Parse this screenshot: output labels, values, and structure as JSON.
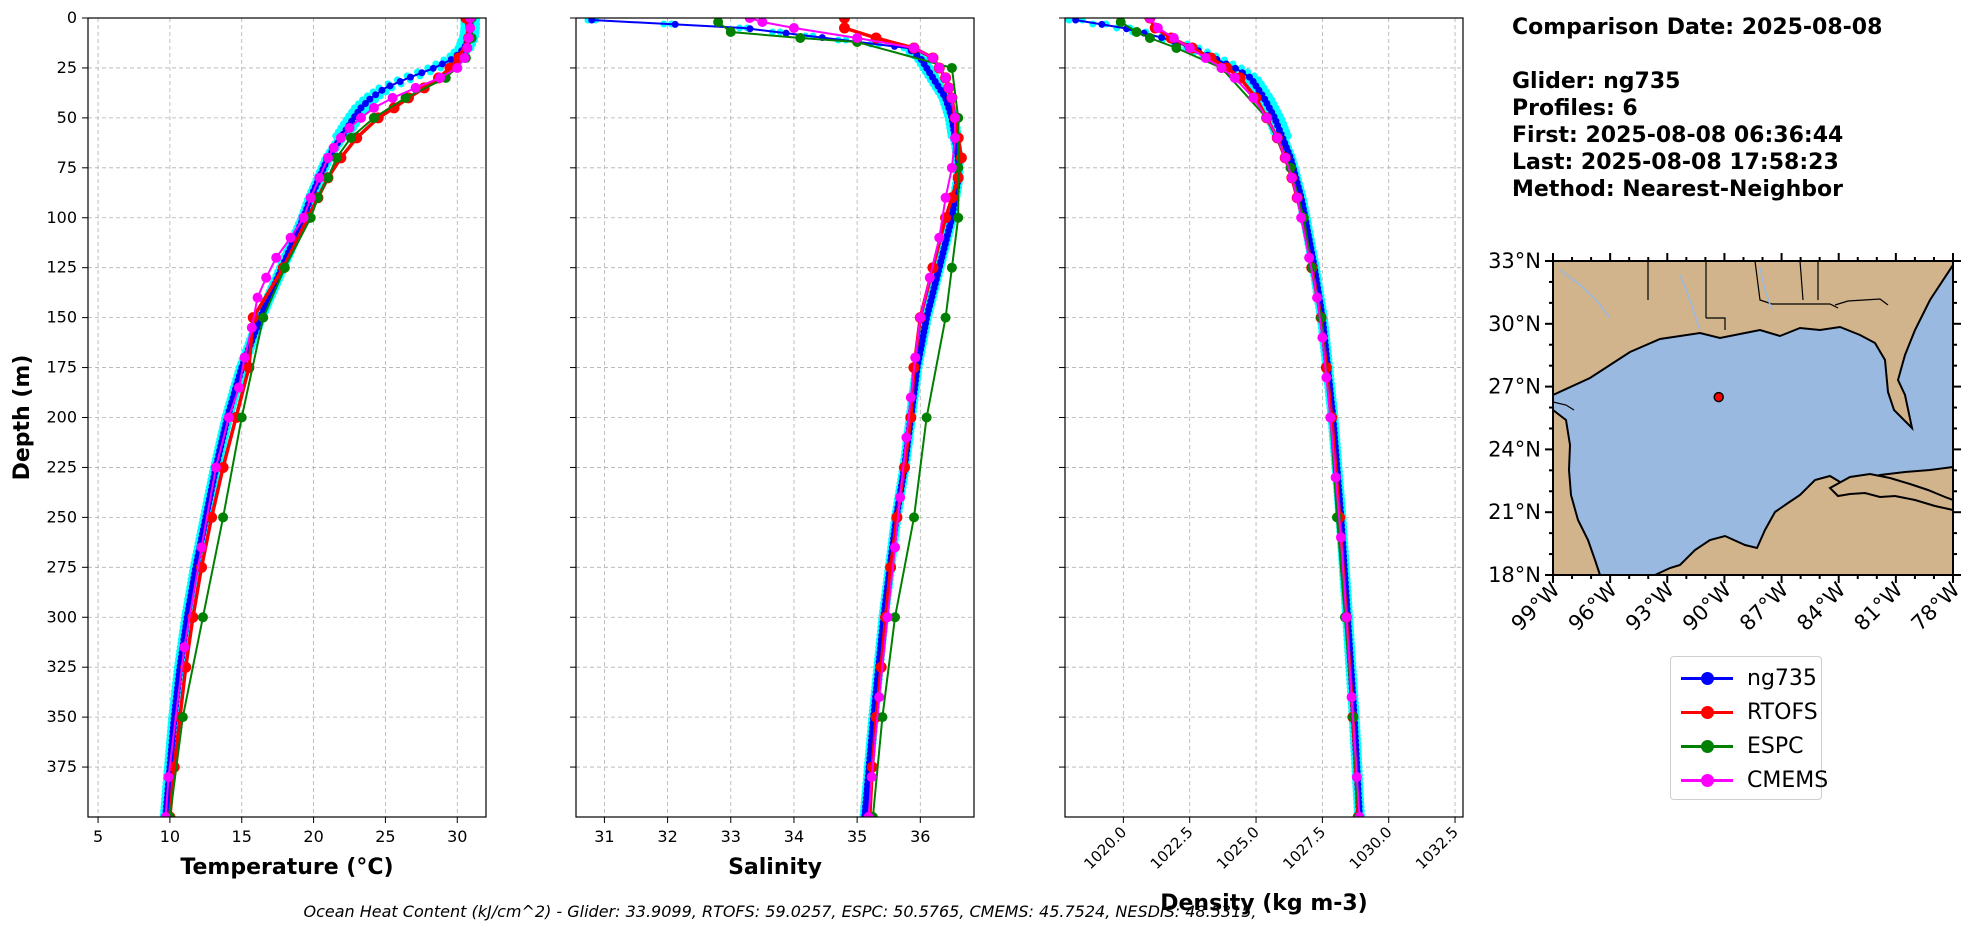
{
  "info": {
    "comparison_date": "Comparison Date: 2025-08-08",
    "glider": "Glider: ng735",
    "profiles": "Profiles: 6",
    "first": "First: 2025-08-08 06:36:44",
    "last": "Last: 2025-08-08 17:58:23",
    "method": "Method: Nearest-Neighbor"
  },
  "footer": "Ocean Heat Content (kJ/cm^2) - Glider: 33.9099,  RTOFS: 59.0257,  ESPC: 50.5765,  CMEMS: 45.7524,  NESDIS: 48.5315,",
  "legend": [
    {
      "label": "ng735",
      "color": "#0000ff"
    },
    {
      "label": "RTOFS",
      "color": "#ff0000"
    },
    {
      "label": "ESPC",
      "color": "#008000"
    },
    {
      "label": "CMEMS",
      "color": "#ff00ff"
    }
  ],
  "colors": {
    "glider_profiles": "#00ffff",
    "land": "#d2b48c",
    "ocean": "#99b9e1",
    "marker": "#ff0000"
  },
  "chart_data": [
    {
      "type": "line",
      "title": "",
      "xlabel": "Temperature (°C)",
      "ylabel": "Depth (m)",
      "xlim": [
        4.3,
        32
      ],
      "ylim": [
        400,
        0
      ],
      "xticks": [
        5,
        10,
        15,
        20,
        25,
        30
      ],
      "yticks": [
        0,
        25,
        50,
        75,
        100,
        125,
        150,
        175,
        200,
        225,
        250,
        275,
        300,
        325,
        350,
        375
      ],
      "grid": true,
      "series": [
        {
          "name": "ng735",
          "color": "#0000ff",
          "depth": [
            0,
            5,
            10,
            15,
            20,
            25,
            30,
            35,
            40,
            45,
            50,
            60,
            70,
            80,
            90,
            100,
            125,
            150,
            175,
            200,
            225,
            250,
            275,
            300,
            325,
            350,
            375,
            400
          ],
          "values": [
            30.9,
            30.9,
            30.8,
            30.5,
            29.8,
            28.4,
            26.6,
            25.0,
            24.0,
            23.3,
            22.8,
            21.9,
            21.0,
            20.4,
            19.8,
            19.3,
            17.8,
            16.3,
            15.0,
            14.0,
            13.2,
            12.5,
            11.8,
            11.2,
            10.7,
            10.3,
            10.0,
            9.7
          ]
        },
        {
          "name": "RTOFS",
          "color": "#ff0000",
          "depth": [
            0,
            10,
            20,
            25,
            30,
            35,
            40,
            45,
            50,
            60,
            70,
            80,
            90,
            100,
            125,
            150,
            175,
            200,
            225,
            250,
            275,
            300,
            325,
            350,
            375,
            400
          ],
          "values": [
            30.6,
            30.8,
            30.1,
            29.5,
            28.7,
            27.7,
            26.6,
            25.6,
            24.5,
            23.0,
            21.9,
            21.0,
            20.3,
            19.6,
            17.9,
            15.8,
            15.5,
            14.6,
            13.7,
            12.9,
            12.2,
            11.6,
            11.1,
            10.7,
            10.3,
            10.0
          ]
        },
        {
          "name": "ESPC",
          "color": "#008000",
          "depth": [
            0,
            10,
            20,
            30,
            40,
            50,
            60,
            70,
            80,
            90,
            100,
            125,
            150,
            200,
            250,
            300,
            350,
            400
          ],
          "values": [
            31.0,
            31.0,
            30.6,
            29.2,
            26.4,
            24.2,
            22.6,
            21.6,
            21.0,
            20.3,
            19.8,
            18.0,
            16.5,
            15.0,
            13.7,
            12.3,
            10.9,
            10.0
          ]
        },
        {
          "name": "CMEMS",
          "color": "#ff00ff",
          "depth": [
            0,
            5,
            10,
            15,
            20,
            25,
            30,
            35,
            40,
            45,
            50,
            55,
            60,
            65,
            70,
            80,
            90,
            100,
            110,
            120,
            130,
            140,
            155,
            170,
            185,
            200,
            225,
            265,
            315,
            380,
            400
          ],
          "values": [
            30.9,
            30.9,
            30.8,
            30.7,
            30.5,
            30.0,
            28.8,
            27.1,
            25.5,
            24.2,
            23.3,
            22.5,
            21.9,
            21.4,
            21.0,
            20.4,
            19.8,
            19.3,
            18.4,
            17.4,
            16.7,
            16.1,
            15.7,
            15.2,
            14.8,
            14.1,
            13.2,
            12.2,
            11.0,
            9.9,
            9.7
          ]
        }
      ]
    },
    {
      "type": "line",
      "title": "",
      "xlabel": "Salinity",
      "ylabel": "",
      "xlim": [
        30.55,
        36.85
      ],
      "ylim": [
        400,
        0
      ],
      "xticks": [
        31,
        32,
        33,
        34,
        35,
        36
      ],
      "grid": true,
      "series": [
        {
          "name": "ng735",
          "color": "#0000ff",
          "depth": [
            1,
            5,
            10,
            15,
            20,
            25,
            30,
            35,
            40,
            50,
            60,
            70,
            80,
            90,
            100,
            125,
            150,
            175,
            200,
            225,
            250,
            275,
            300,
            325,
            350,
            375,
            400
          ],
          "values": [
            30.8,
            33.2,
            34.5,
            35.8,
            36.0,
            36.1,
            36.2,
            36.3,
            36.4,
            36.5,
            36.55,
            36.6,
            36.6,
            36.55,
            36.5,
            36.3,
            36.1,
            35.95,
            35.85,
            35.75,
            35.62,
            35.52,
            35.42,
            35.34,
            35.26,
            35.19,
            35.12
          ]
        },
        {
          "name": "RTOFS",
          "color": "#ff0000",
          "depth": [
            0,
            5,
            10,
            15,
            20,
            25,
            30,
            35,
            40,
            50,
            60,
            70,
            80,
            90,
            100,
            125,
            150,
            175,
            200,
            225,
            250,
            275,
            300,
            325,
            350,
            375,
            400
          ],
          "values": [
            34.8,
            34.8,
            35.3,
            35.9,
            36.2,
            36.3,
            36.4,
            36.45,
            36.5,
            36.55,
            36.6,
            36.65,
            36.6,
            36.5,
            36.4,
            36.2,
            36.0,
            35.9,
            35.85,
            35.75,
            35.63,
            35.53,
            35.45,
            35.38,
            35.3,
            35.24,
            35.2
          ]
        },
        {
          "name": "ESPC",
          "color": "#008000",
          "depth": [
            2,
            7,
            10,
            12,
            25,
            50,
            75,
            100,
            125,
            150,
            200,
            250,
            300,
            350,
            400
          ],
          "values": [
            32.8,
            33.0,
            34.1,
            35.0,
            36.5,
            36.6,
            36.6,
            36.6,
            36.5,
            36.4,
            36.1,
            35.9,
            35.6,
            35.4,
            35.25
          ]
        },
        {
          "name": "CMEMS",
          "color": "#ff00ff",
          "depth": [
            0,
            2,
            5,
            10,
            15,
            20,
            25,
            30,
            35,
            40,
            50,
            60,
            75,
            90,
            110,
            130,
            150,
            170,
            190,
            210,
            240,
            265,
            300,
            340,
            380,
            400
          ],
          "values": [
            33.3,
            33.5,
            34.0,
            35.0,
            35.9,
            36.2,
            36.3,
            36.4,
            36.45,
            36.5,
            36.55,
            36.55,
            36.5,
            36.4,
            36.3,
            36.15,
            36.0,
            35.92,
            35.85,
            35.78,
            35.68,
            35.6,
            35.48,
            35.35,
            35.23,
            35.18
          ]
        }
      ]
    },
    {
      "type": "line",
      "title": "",
      "xlabel": "Density (kg m-3)",
      "ylabel": "",
      "xlim": [
        1017.8,
        1032.8
      ],
      "ylim": [
        400,
        0
      ],
      "xticks": [
        1020.0,
        1022.5,
        1025.0,
        1027.5,
        1030.0,
        1032.5
      ],
      "grid": true,
      "series": [
        {
          "name": "ng735",
          "color": "#0000ff",
          "depth": [
            1,
            5,
            10,
            15,
            20,
            25,
            30,
            40,
            50,
            60,
            70,
            80,
            90,
            100,
            125,
            150,
            175,
            200,
            250,
            300,
            350,
            400
          ],
          "values": [
            1018.2,
            1020.0,
            1021.5,
            1022.6,
            1023.4,
            1024.2,
            1024.8,
            1025.3,
            1025.7,
            1026.0,
            1026.3,
            1026.5,
            1026.7,
            1026.85,
            1027.2,
            1027.5,
            1027.7,
            1027.9,
            1028.2,
            1028.45,
            1028.7,
            1028.9
          ]
        },
        {
          "name": "RTOFS",
          "color": "#ff0000",
          "depth": [
            0,
            5,
            10,
            15,
            20,
            25,
            30,
            40,
            50,
            60,
            70,
            80,
            90,
            100,
            125,
            150,
            175,
            200,
            250,
            300,
            350,
            400
          ],
          "values": [
            1021.0,
            1021.2,
            1021.8,
            1022.6,
            1023.3,
            1023.9,
            1024.4,
            1025.0,
            1025.4,
            1025.8,
            1026.1,
            1026.35,
            1026.55,
            1026.75,
            1027.1,
            1027.45,
            1027.65,
            1027.85,
            1028.15,
            1028.4,
            1028.65,
            1028.85
          ]
        },
        {
          "name": "ESPC",
          "color": "#008000",
          "depth": [
            2,
            7,
            10,
            15,
            25,
            50,
            75,
            100,
            125,
            150,
            200,
            250,
            300,
            350,
            400
          ],
          "values": [
            1019.9,
            1020.5,
            1021.0,
            1022.0,
            1023.7,
            1025.4,
            1026.3,
            1026.8,
            1027.1,
            1027.45,
            1027.8,
            1028.05,
            1028.35,
            1028.65,
            1028.85
          ]
        },
        {
          "name": "CMEMS",
          "color": "#ff00ff",
          "depth": [
            0,
            5,
            10,
            15,
            20,
            25,
            30,
            40,
            50,
            60,
            70,
            80,
            90,
            100,
            120,
            140,
            160,
            180,
            200,
            230,
            260,
            300,
            340,
            380,
            400
          ],
          "values": [
            1021.0,
            1021.3,
            1021.9,
            1022.5,
            1023.1,
            1023.7,
            1024.2,
            1024.9,
            1025.4,
            1025.8,
            1026.1,
            1026.35,
            1026.55,
            1026.7,
            1027.0,
            1027.3,
            1027.5,
            1027.65,
            1027.8,
            1028.0,
            1028.2,
            1028.4,
            1028.6,
            1028.8,
            1028.9
          ]
        }
      ]
    },
    {
      "type": "map",
      "title": "",
      "lat_ticks": [
        "33°N",
        "30°N",
        "27°N",
        "24°N",
        "21°N",
        "18°N"
      ],
      "lon_ticks": [
        "99°W",
        "96°W",
        "93°W",
        "90°W",
        "87°W",
        "84°W",
        "81°W",
        "78°W"
      ],
      "lat_range": [
        18,
        33
      ],
      "lon_range": [
        -99,
        -78
      ],
      "marker": {
        "lon": -90.3,
        "lat": 26.5
      }
    }
  ]
}
